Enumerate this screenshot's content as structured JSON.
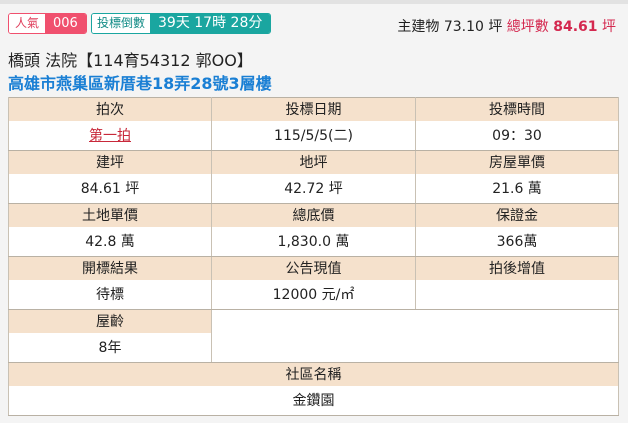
{
  "badges": {
    "popularity_label": "人氣",
    "popularity_value": "006",
    "countdown_label": "投標倒數",
    "countdown_value": "39天 17時 28分"
  },
  "area": {
    "main_label": "主建物",
    "main_value": "73.10 坪",
    "total_label": "總坪數",
    "total_value": "84.61",
    "total_unit": "坪"
  },
  "case_title": "橋頭 法院【114育54312 郭OO】",
  "address": "高雄市燕巢區新厝巷18弄28號3層樓",
  "colors": {
    "popularity": "#f0506e",
    "countdown": "#1aa6a0",
    "address": "#1a7fd4",
    "total_area": "#d4284f",
    "header_bg": "#f5e1cc"
  },
  "table": {
    "rows": [
      [
        {
          "h": "拍次",
          "v": "第一拍"
        },
        {
          "h": "投標日期",
          "v": "115/5/5(二)"
        },
        {
          "h": "投標時間",
          "v": "09：30"
        }
      ],
      [
        {
          "h": "建坪",
          "v": "84.61 坪"
        },
        {
          "h": "地坪",
          "v": "42.72 坪"
        },
        {
          "h": "房屋單價",
          "v": "21.6 萬"
        }
      ],
      [
        {
          "h": "土地單價",
          "v": "42.8 萬"
        },
        {
          "h": "總底價",
          "v": "1,830.0 萬"
        },
        {
          "h": "保證金",
          "v": "366萬"
        }
      ],
      [
        {
          "h": "開標結果",
          "v": "待標"
        },
        {
          "h": "公告現值",
          "v": "12000 元/㎡"
        },
        {
          "h": "拍後增值",
          "v": ""
        }
      ]
    ],
    "age": {
      "h": "屋齡",
      "v": "8年"
    },
    "community": {
      "h": "社區名稱",
      "v": "金鑽園"
    }
  }
}
